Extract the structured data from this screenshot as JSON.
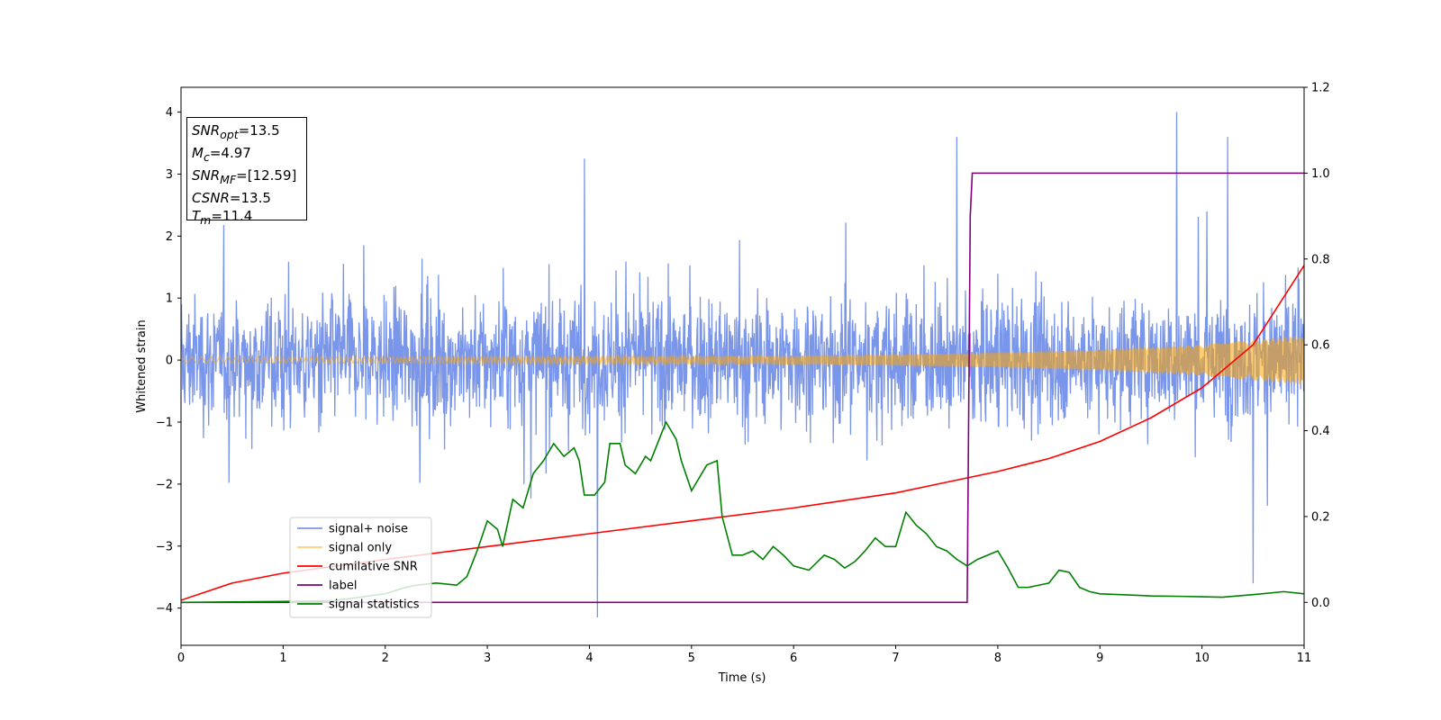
{
  "chart_data": {
    "type": "line",
    "xlabel": "Time (s)",
    "ylabel": "Whitened strain",
    "xlim": [
      0,
      11
    ],
    "ylim_left": [
      -4.6,
      4.4
    ],
    "ylim_right": [
      -0.1,
      1.2
    ],
    "x_ticks": [
      "0",
      "1",
      "2",
      "3",
      "4",
      "5",
      "6",
      "7",
      "8",
      "9",
      "10",
      "11"
    ],
    "y_ticks_left": [
      "4",
      "3",
      "2",
      "1",
      "0",
      "−1",
      "−2",
      "−3",
      "−4"
    ],
    "y_ticks_right": [
      "1.2",
      "1.0",
      "0.8",
      "0.6",
      "0.4",
      "0.2",
      "0.0"
    ],
    "legend_position": "lower-left",
    "grid": false,
    "info_box": [
      "SNR_opt=13.5",
      "M_c=4.97",
      "SNR_MF=[12.59]",
      "CSNR=13.5",
      "T_m=11.4"
    ],
    "series": [
      {
        "name": "signal+ noise",
        "axis": "left",
        "color": "#4169e1",
        "style": "noise band",
        "typical_range": [
          -1.6,
          1.6
        ],
        "notable_spikes": [
          [
            3.95,
            3.25
          ],
          [
            4.08,
            -4.15
          ],
          [
            7.6,
            3.6
          ],
          [
            9.75,
            4.0
          ],
          [
            10.25,
            3.6
          ],
          [
            10.5,
            -3.6
          ]
        ]
      },
      {
        "name": "signal only",
        "axis": "left",
        "color": "#ffa500",
        "style": "chirp",
        "x": [
          0,
          2,
          4,
          6,
          7,
          8,
          9,
          10,
          11
        ],
        "amplitude": [
          0.05,
          0.05,
          0.06,
          0.07,
          0.09,
          0.12,
          0.17,
          0.25,
          0.4
        ]
      },
      {
        "name": "cumilative SNR",
        "axis": "right",
        "color": "#ff0000",
        "x": [
          0,
          0.5,
          1,
          2,
          3,
          4,
          5,
          6,
          7,
          7.5,
          8,
          8.5,
          9,
          9.5,
          10,
          10.5,
          11
        ],
        "y": [
          0.005,
          0.045,
          0.068,
          0.1,
          0.13,
          0.16,
          0.19,
          0.22,
          0.255,
          0.28,
          0.305,
          0.335,
          0.375,
          0.43,
          0.5,
          0.6,
          0.785
        ]
      },
      {
        "name": "label",
        "axis": "right",
        "color": "#800080",
        "x": [
          0,
          7.7,
          7.73,
          7.75,
          11
        ],
        "y": [
          0,
          0,
          0.9,
          1.0,
          1.0
        ]
      },
      {
        "name": "signal statistics",
        "axis": "right",
        "color": "#008000",
        "x": [
          0,
          0.5,
          1,
          1.5,
          2.0,
          2.2,
          2.3,
          2.5,
          2.7,
          2.8,
          2.9,
          3.0,
          3.1,
          3.15,
          3.25,
          3.35,
          3.45,
          3.55,
          3.65,
          3.75,
          3.85,
          3.9,
          3.95,
          4.05,
          4.15,
          4.2,
          4.3,
          4.35,
          4.45,
          4.55,
          4.6,
          4.7,
          4.75,
          4.85,
          4.9,
          5.0,
          5.05,
          5.15,
          5.25,
          5.3,
          5.4,
          5.5,
          5.6,
          5.7,
          5.8,
          5.9,
          6.0,
          6.15,
          6.3,
          6.4,
          6.5,
          6.6,
          6.7,
          6.8,
          6.9,
          7.0,
          7.1,
          7.2,
          7.3,
          7.4,
          7.5,
          7.6,
          7.7,
          7.8,
          7.9,
          8.0,
          8.1,
          8.2,
          8.3,
          8.4,
          8.5,
          8.6,
          8.7,
          8.8,
          8.9,
          9.0,
          9.2,
          9.5,
          9.8,
          10.0,
          10.2,
          10.5,
          10.8,
          11.0
        ],
        "y": [
          0,
          0.001,
          0.002,
          0.004,
          0.02,
          0.035,
          0.04,
          0.045,
          0.04,
          0.06,
          0.12,
          0.19,
          0.17,
          0.13,
          0.24,
          0.22,
          0.3,
          0.33,
          0.37,
          0.34,
          0.36,
          0.33,
          0.25,
          0.25,
          0.28,
          0.37,
          0.37,
          0.32,
          0.3,
          0.34,
          0.33,
          0.39,
          0.42,
          0.38,
          0.33,
          0.26,
          0.28,
          0.32,
          0.33,
          0.2,
          0.11,
          0.11,
          0.12,
          0.1,
          0.13,
          0.11,
          0.085,
          0.075,
          0.11,
          0.1,
          0.08,
          0.095,
          0.12,
          0.15,
          0.13,
          0.13,
          0.21,
          0.18,
          0.16,
          0.13,
          0.12,
          0.1,
          0.085,
          0.1,
          0.11,
          0.12,
          0.08,
          0.035,
          0.035,
          0.04,
          0.045,
          0.075,
          0.07,
          0.035,
          0.025,
          0.02,
          0.018,
          0.015,
          0.014,
          0.013,
          0.012,
          0.018,
          0.025,
          0.02
        ]
      }
    ]
  }
}
